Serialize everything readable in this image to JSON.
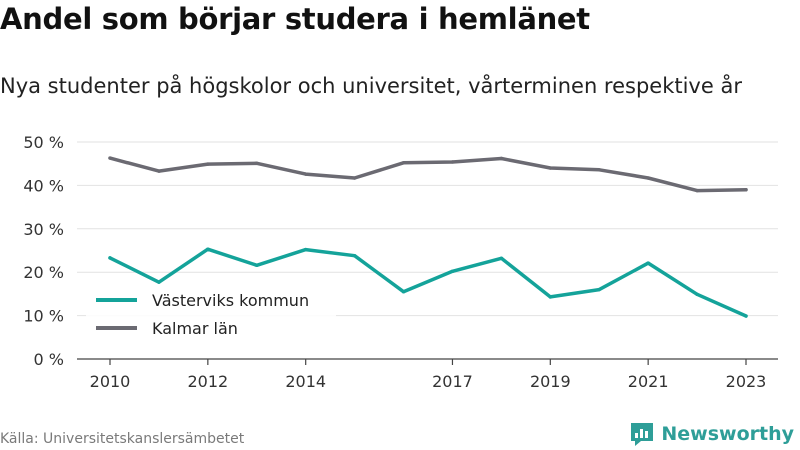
{
  "title": "Andel som börjar studera i hemlänet",
  "subtitle": "Nya studenter på högskolor och universitet, vårterminen respektive år",
  "source": "Källa: Universitetskanslersämbetet",
  "brand": "Newsworthy",
  "colors": {
    "series_1": "#14a39a",
    "series_2": "#6b6a72",
    "grid": "#e2e2e2",
    "axis": "#444444",
    "brand": "#2e9e98"
  },
  "chart_data": {
    "type": "line",
    "x": [
      2010,
      2011,
      2012,
      2013,
      2014,
      2015,
      2016,
      2017,
      2018,
      2019,
      2020,
      2021,
      2022,
      2023
    ],
    "x_tick_labels": [
      "2010",
      "2012",
      "2014",
      "2017",
      "2019",
      "2021",
      "2023"
    ],
    "y_tick_labels": [
      "0 %",
      "10 %",
      "20 %",
      "30 %",
      "40 %",
      "50 %"
    ],
    "ylim": [
      0,
      50
    ],
    "grid": true,
    "legend_position": "bottom-left",
    "series": [
      {
        "name": "Västerviks kommun",
        "values": [
          23.3,
          17.7,
          25.3,
          21.6,
          25.2,
          23.8,
          15.5,
          20.2,
          23.2,
          14.3,
          16.0,
          22.1,
          14.9,
          9.9
        ]
      },
      {
        "name": "Kalmar län",
        "values": [
          46.3,
          43.3,
          44.9,
          45.1,
          42.6,
          41.7,
          45.2,
          45.4,
          46.2,
          44.0,
          43.6,
          41.7,
          38.8,
          39.0
        ]
      }
    ]
  }
}
